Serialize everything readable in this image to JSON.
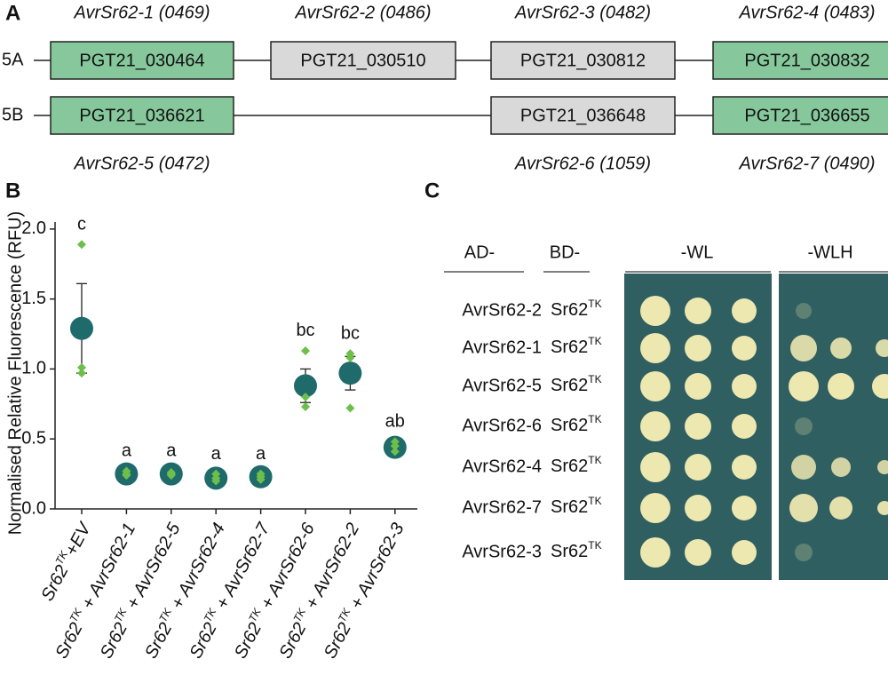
{
  "panel_a": {
    "letter": "A",
    "rows": [
      {
        "label": "5A",
        "genes": [
          {
            "id": "PGT21_030464",
            "name": "AvrSr62-1 (0469)",
            "color": "#86c89c"
          },
          {
            "id": "PGT21_030510",
            "name": "AvrSr62-2 (0486)",
            "color": "#d9d9d9"
          },
          {
            "id": "PGT21_030812",
            "name": "AvrSr62-3 (0482)",
            "color": "#d9d9d9"
          },
          {
            "id": "PGT21_030832",
            "name": "AvrSr62-4 (0483)",
            "color": "#86c89c"
          }
        ]
      },
      {
        "label": "5B",
        "genes": [
          {
            "id": "PGT21_036621",
            "name": "AvrSr62-5 (0472)",
            "color": "#86c89c"
          },
          {
            "id": "PGT21_036648",
            "name": "AvrSr62-6 (1059)",
            "color": "#d9d9d9"
          },
          {
            "id": "PGT21_036655",
            "name": "AvrSr62-7 (0490)",
            "color": "#86c89c"
          }
        ]
      }
    ]
  },
  "chart_data": {
    "type": "scatter",
    "letter": "B",
    "y_label": "Normalised Relative Fluorescence (RFU)",
    "categories": [
      [
        "Sr62",
        "TK",
        "+EV"
      ],
      [
        "Sr62",
        "TK",
        " + AvrSr62-1"
      ],
      [
        "Sr62",
        "TK",
        " + AvrSr62-5"
      ],
      [
        "Sr62",
        "TK",
        " + AvrSr62-4"
      ],
      [
        "Sr62",
        "TK",
        " + AvrSr62-7"
      ],
      [
        "Sr62",
        "TK",
        " + AvrSr62-6"
      ],
      [
        "Sr62",
        "TK",
        " + AvrSr62-2"
      ],
      [
        "Sr62",
        "TK",
        " + AvrSr62-3"
      ]
    ],
    "values": [
      1.29,
      0.25,
      0.25,
      0.22,
      0.23,
      0.88,
      0.97,
      0.44
    ],
    "errors": [
      0.32,
      0.02,
      0.02,
      0.03,
      0.02,
      0.12,
      0.12,
      0.04
    ],
    "points": [
      [
        1.89,
        0.97,
        1.01
      ],
      [
        0.24,
        0.25,
        0.27
      ],
      [
        0.24,
        0.25,
        0.26
      ],
      [
        0.2,
        0.22,
        0.25
      ],
      [
        0.21,
        0.23,
        0.25
      ],
      [
        1.13,
        0.73,
        0.8
      ],
      [
        1.11,
        0.72,
        1.08
      ],
      [
        0.41,
        0.45,
        0.48
      ]
    ],
    "annotations": [
      "c",
      "a",
      "a",
      "a",
      "a",
      "bc",
      "bc",
      "ab"
    ],
    "mean_color": "#1f6a6a",
    "point_color": "#6cc04a",
    "ylim": [
      0,
      2.05
    ],
    "yticks": [
      {
        "value": 0,
        "label": "0.0"
      },
      {
        "value": 0.5,
        "label": "0.5"
      },
      {
        "value": 1,
        "label": "1.0"
      },
      {
        "value": 1.5,
        "label": "1.5"
      },
      {
        "value": 2,
        "label": "2.0"
      }
    ]
  },
  "panel_c": {
    "letter": "C",
    "headers": [
      "AD-",
      "BD-",
      "-WL",
      "-WLH"
    ],
    "rows": [
      {
        "ad": "AvrSr62-2",
        "bd": [
          "Sr62",
          "TK"
        ]
      },
      {
        "ad": "AvrSr62-1",
        "bd": [
          "Sr62",
          "TK"
        ]
      },
      {
        "ad": "AvrSr62-5",
        "bd": [
          "Sr62",
          "TK"
        ]
      },
      {
        "ad": "AvrSr62-6",
        "bd": [
          "Sr62",
          "TK"
        ]
      },
      {
        "ad": "AvrSr62-4",
        "bd": [
          "Sr62",
          "TK"
        ]
      },
      {
        "ad": "AvrSr62-7",
        "bd": [
          "Sr62",
          "TK"
        ]
      },
      {
        "ad": "AvrSr62-3",
        "bd": [
          "Sr62",
          "TK"
        ]
      }
    ]
  }
}
